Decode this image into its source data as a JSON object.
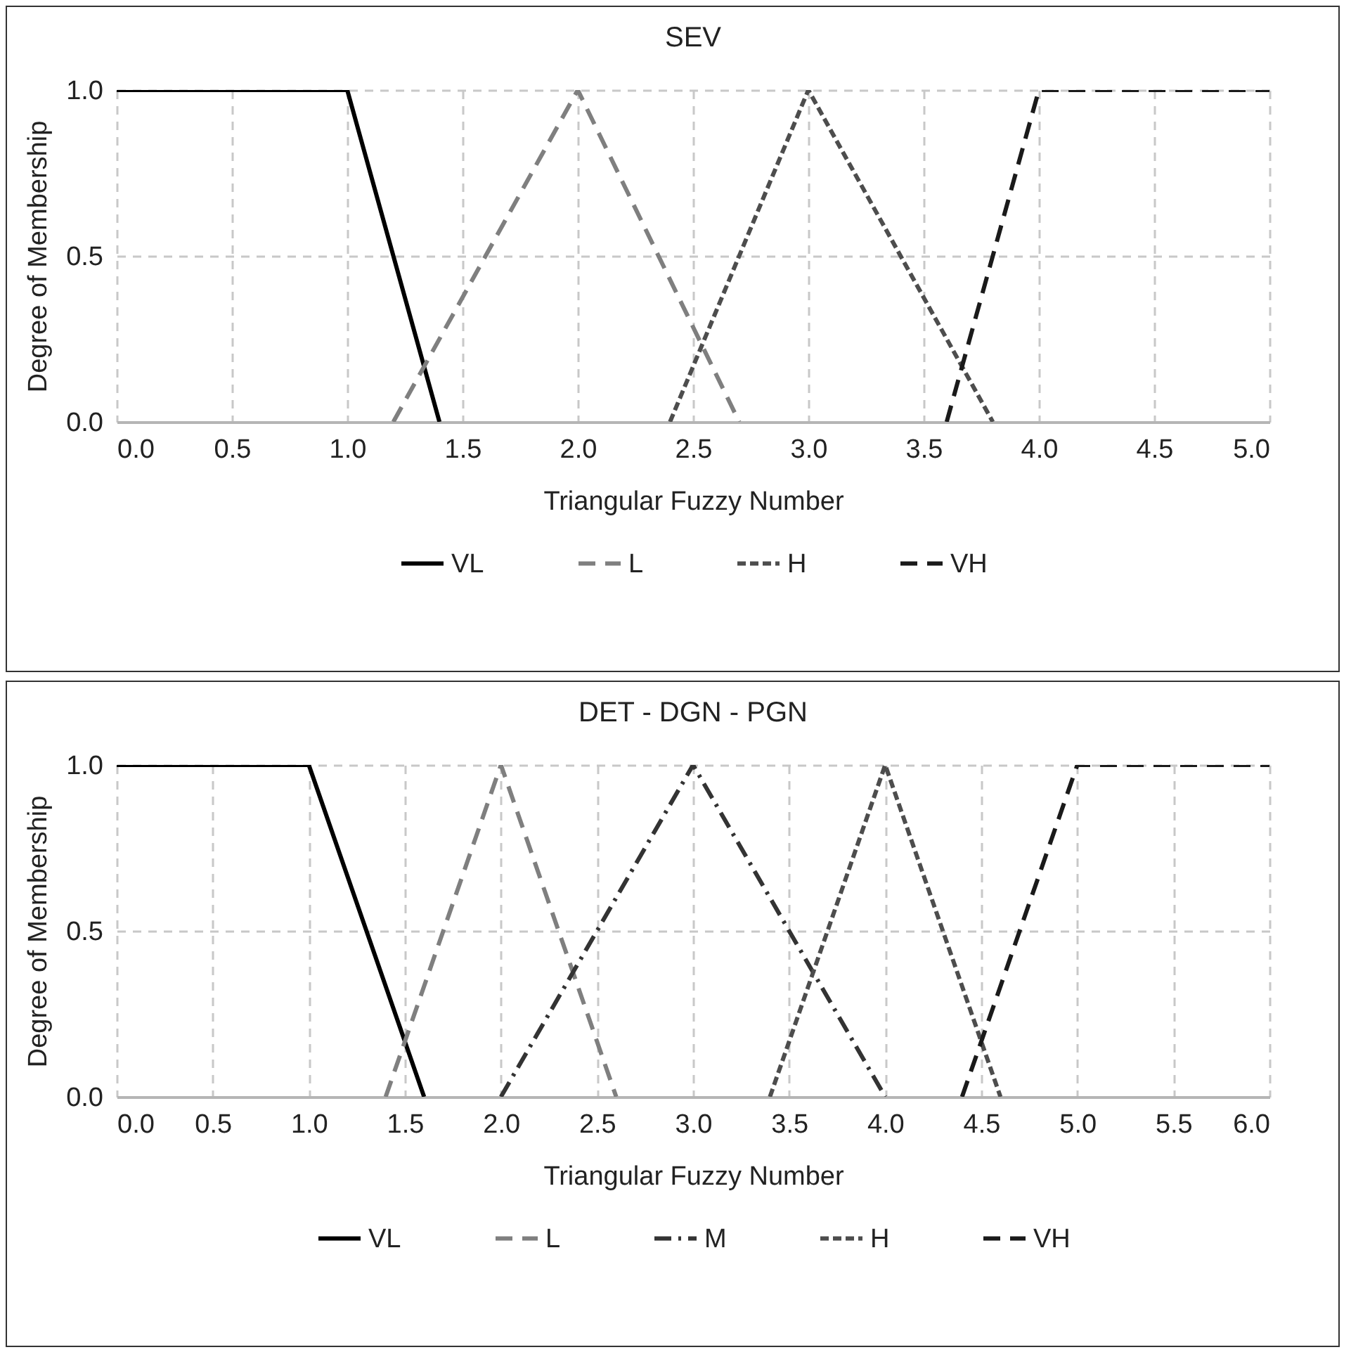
{
  "chart_data": [
    {
      "type": "line",
      "title": "SEV",
      "xlabel": "Triangular Fuzzy Number",
      "ylabel": "Degree of Membership",
      "xlim": [
        0,
        5
      ],
      "ylim": [
        0,
        1
      ],
      "xticks": [
        {
          "value": 0,
          "label": "0.0"
        },
        {
          "value": 0.5,
          "label": "0.5"
        },
        {
          "value": 1,
          "label": "1.0"
        },
        {
          "value": 1.5,
          "label": "1.5"
        },
        {
          "value": 2,
          "label": "2.0"
        },
        {
          "value": 2.5,
          "label": "2.5"
        },
        {
          "value": 3,
          "label": "3.0"
        },
        {
          "value": 3.5,
          "label": "3.5"
        },
        {
          "value": 4,
          "label": "4.0"
        },
        {
          "value": 4.5,
          "label": "4.5"
        },
        {
          "value": 5,
          "label": "5.0"
        }
      ],
      "yticks": [
        {
          "value": 0,
          "label": "0.0"
        },
        {
          "value": 0.5,
          "label": "0.5"
        },
        {
          "value": 1,
          "label": "1.0"
        }
      ],
      "grid": true,
      "legend": "bottom",
      "marker": "none",
      "series": [
        {
          "name": "VL",
          "color": "#000000",
          "line_style": "solid",
          "x": [
            0,
            1,
            1.4
          ],
          "values": [
            1,
            1,
            0
          ]
        },
        {
          "name": "L",
          "color": "#7f7f7f",
          "line_style": "dashed",
          "x": [
            1.2,
            2,
            2.7
          ],
          "values": [
            0,
            1,
            0
          ]
        },
        {
          "name": "H",
          "color": "#4d4d4d",
          "line_style": "dotted",
          "x": [
            2.4,
            3,
            3.8
          ],
          "values": [
            0,
            1,
            0
          ]
        },
        {
          "name": "VH",
          "color": "#1a1a1a",
          "line_style": "dashed",
          "x": [
            3.6,
            4,
            5
          ],
          "values": [
            0,
            1,
            1
          ]
        }
      ]
    },
    {
      "type": "line",
      "title": "DET - DGN - PGN",
      "xlabel": "Triangular Fuzzy Number",
      "ylabel": "Degree of Membership",
      "xlim": [
        0,
        6
      ],
      "ylim": [
        0,
        1
      ],
      "xticks": [
        {
          "value": 0,
          "label": "0.0"
        },
        {
          "value": 0.5,
          "label": "0.5"
        },
        {
          "value": 1,
          "label": "1.0"
        },
        {
          "value": 1.5,
          "label": "1.5"
        },
        {
          "value": 2,
          "label": "2.0"
        },
        {
          "value": 2.5,
          "label": "2.5"
        },
        {
          "value": 3,
          "label": "3.0"
        },
        {
          "value": 3.5,
          "label": "3.5"
        },
        {
          "value": 4,
          "label": "4.0"
        },
        {
          "value": 4.5,
          "label": "4.5"
        },
        {
          "value": 5,
          "label": "5.0"
        },
        {
          "value": 5.5,
          "label": "5.5"
        },
        {
          "value": 6,
          "label": "6.0"
        }
      ],
      "yticks": [
        {
          "value": 0,
          "label": "0.0"
        },
        {
          "value": 0.5,
          "label": "0.5"
        },
        {
          "value": 1,
          "label": "1.0"
        }
      ],
      "grid": true,
      "legend": "bottom",
      "marker": "none",
      "series": [
        {
          "name": "VL",
          "color": "#000000",
          "line_style": "solid",
          "x": [
            0,
            1,
            1.6
          ],
          "values": [
            1,
            1,
            0
          ]
        },
        {
          "name": "L",
          "color": "#7f7f7f",
          "line_style": "dashed",
          "x": [
            1.4,
            2,
            2.6
          ],
          "values": [
            0,
            1,
            0
          ]
        },
        {
          "name": "M",
          "color": "#333333",
          "line_style": "dashdot",
          "x": [
            2,
            3,
            4
          ],
          "values": [
            0,
            1,
            0
          ]
        },
        {
          "name": "H",
          "color": "#4d4d4d",
          "line_style": "dotted",
          "x": [
            3.4,
            4,
            4.6
          ],
          "values": [
            0,
            1,
            0
          ]
        },
        {
          "name": "VH",
          "color": "#1a1a1a",
          "line_style": "dashed",
          "x": [
            4.4,
            5,
            6
          ],
          "values": [
            0,
            1,
            1
          ]
        }
      ]
    }
  ]
}
